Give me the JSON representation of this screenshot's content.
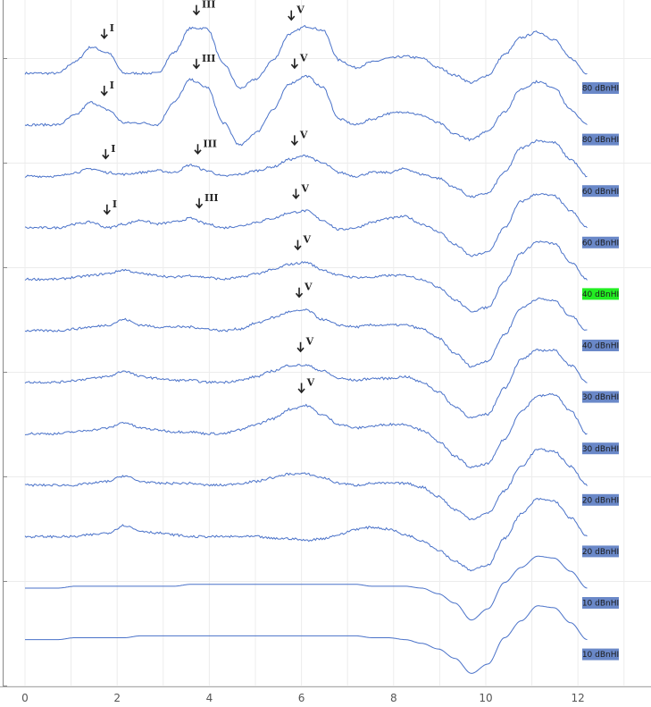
{
  "chart_data": {
    "type": "line",
    "title": "",
    "xlabel": "",
    "ylabel": "",
    "xlim": [
      -0.5,
      13.5
    ],
    "x_ticks": [
      0,
      2,
      4,
      6,
      8,
      10,
      12
    ],
    "x_tick_labels": [
      "0",
      "2",
      "4",
      "6",
      "8",
      "10",
      "12"
    ],
    "grid": true,
    "trace_color": "#4a72c9",
    "level_box_color": "#6a88c8",
    "highlight_box_color": "#22ee22",
    "series": [
      {
        "name": "80 dBnHI",
        "highlight": false,
        "y": [
          0,
          0,
          0,
          12,
          28,
          22,
          0,
          0,
          0,
          22,
          48,
          48,
          10,
          -16,
          -6,
          14,
          42,
          50,
          46,
          14,
          6,
          12,
          16,
          18,
          16,
          6,
          -2,
          -10,
          -2,
          20,
          38,
          44,
          36,
          16,
          0
        ],
        "peaks": [
          {
            "label": "I",
            "x": 1.72
          },
          {
            "label": "III",
            "x": 3.72
          },
          {
            "label": "V",
            "x": 5.78
          }
        ]
      },
      {
        "name": "80 dBnHI",
        "highlight": false,
        "y": [
          0,
          0,
          0,
          10,
          24,
          16,
          2,
          2,
          0,
          24,
          48,
          40,
          2,
          -22,
          -8,
          16,
          44,
          52,
          40,
          6,
          0,
          6,
          12,
          14,
          10,
          2,
          -10,
          -16,
          -6,
          14,
          38,
          46,
          40,
          16,
          0
        ],
        "peaks": [
          {
            "label": "I",
            "x": 1.72
          },
          {
            "label": "III",
            "x": 3.72
          },
          {
            "label": "V",
            "x": 5.85
          }
        ]
      },
      {
        "name": "60 dBnHI",
        "highlight": false,
        "y": [
          0,
          0,
          0,
          4,
          8,
          4,
          2,
          4,
          6,
          4,
          12,
          6,
          0,
          2,
          6,
          10,
          18,
          22,
          14,
          4,
          0,
          4,
          4,
          8,
          2,
          -2,
          -12,
          -22,
          -18,
          4,
          30,
          38,
          36,
          18,
          0
        ],
        "peaks": [
          {
            "label": "I",
            "x": 1.75
          },
          {
            "label": "III",
            "x": 3.75
          },
          {
            "label": "V",
            "x": 5.85
          }
        ]
      },
      {
        "name": "60 dBnHI",
        "highlight": false,
        "y": [
          0,
          0,
          0,
          4,
          6,
          0,
          4,
          8,
          4,
          6,
          10,
          4,
          0,
          2,
          6,
          10,
          16,
          18,
          8,
          -2,
          0,
          6,
          10,
          12,
          4,
          -4,
          -18,
          -30,
          -26,
          0,
          28,
          36,
          34,
          18,
          0
        ],
        "peaks": [
          {
            "label": "I",
            "x": 1.78
          },
          {
            "label": "III",
            "x": 3.78
          },
          {
            "label": "V",
            "x": 5.88
          }
        ]
      },
      {
        "name": "40 dBnHI",
        "highlight": true,
        "y": [
          0,
          0,
          0,
          2,
          4,
          6,
          10,
          6,
          4,
          2,
          4,
          2,
          0,
          2,
          6,
          10,
          16,
          18,
          10,
          4,
          2,
          2,
          4,
          4,
          0,
          -8,
          -22,
          -34,
          -30,
          -2,
          28,
          40,
          38,
          18,
          0
        ],
        "peaks": [
          {
            "label": "V",
            "x": 5.92
          }
        ]
      },
      {
        "name": "40 dBnHI",
        "highlight": false,
        "y": [
          0,
          0,
          0,
          2,
          4,
          6,
          12,
          6,
          4,
          4,
          4,
          2,
          0,
          2,
          8,
          14,
          20,
          22,
          12,
          6,
          4,
          6,
          6,
          6,
          2,
          -8,
          -24,
          -38,
          -32,
          -4,
          24,
          34,
          32,
          16,
          0
        ],
        "peaks": [
          {
            "label": "V",
            "x": 5.95
          }
        ]
      },
      {
        "name": "30 dBnHI",
        "highlight": false,
        "y": [
          0,
          0,
          0,
          2,
          4,
          6,
          12,
          6,
          4,
          2,
          2,
          0,
          0,
          2,
          6,
          12,
          18,
          18,
          12,
          4,
          2,
          4,
          4,
          6,
          0,
          -10,
          -26,
          -38,
          -34,
          -6,
          24,
          34,
          34,
          18,
          0
        ],
        "peaks": [
          {
            "label": "V",
            "x": 5.98
          }
        ]
      },
      {
        "name": "30 dBnHI",
        "highlight": false,
        "y": [
          0,
          0,
          0,
          2,
          4,
          6,
          12,
          6,
          4,
          2,
          2,
          0,
          0,
          4,
          10,
          16,
          26,
          30,
          20,
          10,
          6,
          8,
          10,
          10,
          4,
          -8,
          -24,
          -36,
          -32,
          -6,
          24,
          40,
          42,
          24,
          0
        ],
        "peaks": [
          {
            "label": "V",
            "x": 6.0
          }
        ]
      },
      {
        "name": "20 dBnHI",
        "highlight": false,
        "y": [
          0,
          0,
          0,
          0,
          2,
          4,
          10,
          4,
          2,
          2,
          2,
          0,
          0,
          2,
          4,
          8,
          12,
          12,
          8,
          2,
          0,
          2,
          2,
          2,
          -2,
          -12,
          -26,
          -36,
          -30,
          -6,
          20,
          38,
          36,
          20,
          0
        ],
        "peaks": []
      },
      {
        "name": "20 dBnHI",
        "highlight": false,
        "y": [
          0,
          0,
          0,
          0,
          2,
          4,
          12,
          6,
          4,
          2,
          0,
          0,
          0,
          0,
          0,
          -2,
          -2,
          -4,
          -2,
          2,
          8,
          10,
          8,
          2,
          -4,
          -14,
          -26,
          -36,
          -30,
          -2,
          24,
          40,
          38,
          20,
          0
        ],
        "peaks": []
      },
      {
        "name": "10 dBnHI",
        "highlight": false,
        "y": [
          0,
          0,
          0,
          2,
          2,
          2,
          2,
          2,
          2,
          2,
          4,
          4,
          4,
          4,
          4,
          4,
          4,
          4,
          4,
          4,
          4,
          2,
          2,
          2,
          0,
          -6,
          -16,
          -34,
          -22,
          6,
          22,
          34,
          32,
          18,
          0
        ],
        "peaks": []
      },
      {
        "name": "10 dBnHI",
        "highlight": false,
        "y": [
          0,
          0,
          0,
          2,
          2,
          2,
          2,
          4,
          4,
          4,
          4,
          4,
          4,
          4,
          4,
          4,
          4,
          4,
          4,
          4,
          4,
          2,
          2,
          0,
          -4,
          -10,
          -20,
          -36,
          -26,
          2,
          20,
          36,
          34,
          18,
          0
        ],
        "peaks": []
      }
    ]
  }
}
